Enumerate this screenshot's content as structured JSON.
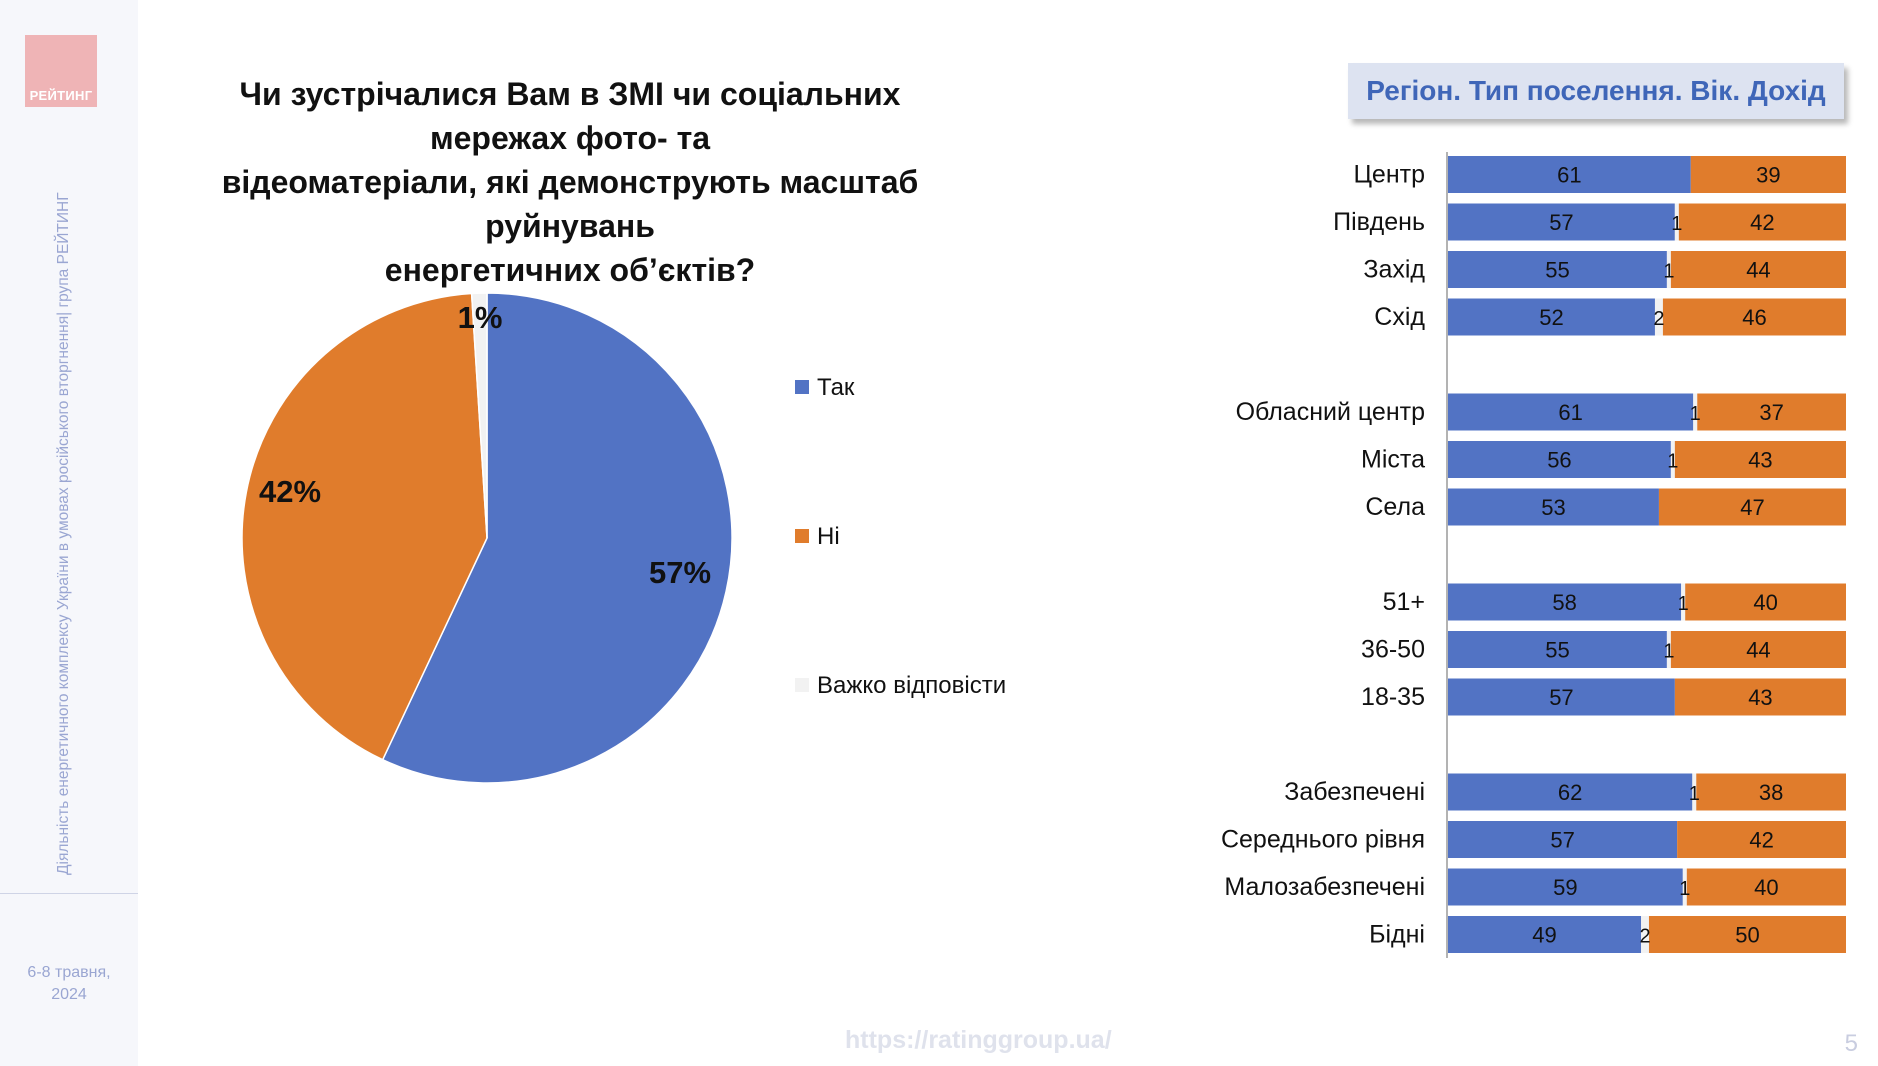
{
  "brand": {
    "logo_text": "РЕЙТИНГ"
  },
  "sidebar": {
    "vertical_text": "Діяльність енергетичного комплексу України в умовах російського вторгнення| група РЕЙТИНГ",
    "date_line1": "6-8 травня,",
    "date_line2": "2024"
  },
  "title": {
    "line1": "Чи зустрічалися Вам в ЗМІ чи соціальних мережах фото- та",
    "line2": "відеоматеріали, які демонструють масштаб руйнувань",
    "line3": "енергетичних об’єктів?"
  },
  "section_header": "Регіон. Тип поселення. Вік. Дохід",
  "footer": {
    "url": "https://ratinggroup.ua/",
    "page_number": "5"
  },
  "colors": {
    "yes": "#5273c4",
    "no": "#e07c2c",
    "hard": "#f2f2f2"
  },
  "chart_data": [
    {
      "type": "pie",
      "slices": [
        {
          "label": "Так",
          "value": 57,
          "display": "57%",
          "color": "#5273c4"
        },
        {
          "label": "Ні",
          "value": 42,
          "display": "42%",
          "color": "#e07c2c"
        },
        {
          "label": "Важко відповісти",
          "value": 1,
          "display": "1%",
          "color": "#f2f2f2"
        }
      ],
      "legend": "right"
    },
    {
      "type": "bar",
      "orientation": "horizontal",
      "stacked": true,
      "xlim": [
        0,
        100
      ],
      "series_order": [
        "yes",
        "hard",
        "no"
      ],
      "groups": [
        {
          "rows": [
            {
              "label": "Центр",
              "yes": 61,
              "hard": 0,
              "no": 39
            },
            {
              "label": "Південь",
              "yes": 57,
              "hard": 1,
              "no": 42
            },
            {
              "label": "Захід",
              "yes": 55,
              "hard": 1,
              "no": 44
            },
            {
              "label": "Схід",
              "yes": 52,
              "hard": 2,
              "no": 46
            }
          ]
        },
        {
          "rows": [
            {
              "label": "Обласний центр",
              "yes": 61,
              "hard": 1,
              "no": 37
            },
            {
              "label": "Міста",
              "yes": 56,
              "hard": 1,
              "no": 43
            },
            {
              "label": "Села",
              "yes": 53,
              "hard": 0,
              "no": 47
            }
          ]
        },
        {
          "rows": [
            {
              "label": "51+",
              "yes": 58,
              "hard": 1,
              "no": 40
            },
            {
              "label": "36-50",
              "yes": 55,
              "hard": 1,
              "no": 44
            },
            {
              "label": "18-35",
              "yes": 57,
              "hard": 0,
              "no": 43
            }
          ]
        },
        {
          "rows": [
            {
              "label": "Забезпечені",
              "yes": 62,
              "hard": 1,
              "no": 38
            },
            {
              "label": "Середнього рівня",
              "yes": 57,
              "hard": 0,
              "no": 42
            },
            {
              "label": "Малозабезпечені",
              "yes": 59,
              "hard": 1,
              "no": 40
            },
            {
              "label": "Бідні",
              "yes": 49,
              "hard": 2,
              "no": 50
            }
          ]
        }
      ]
    }
  ]
}
